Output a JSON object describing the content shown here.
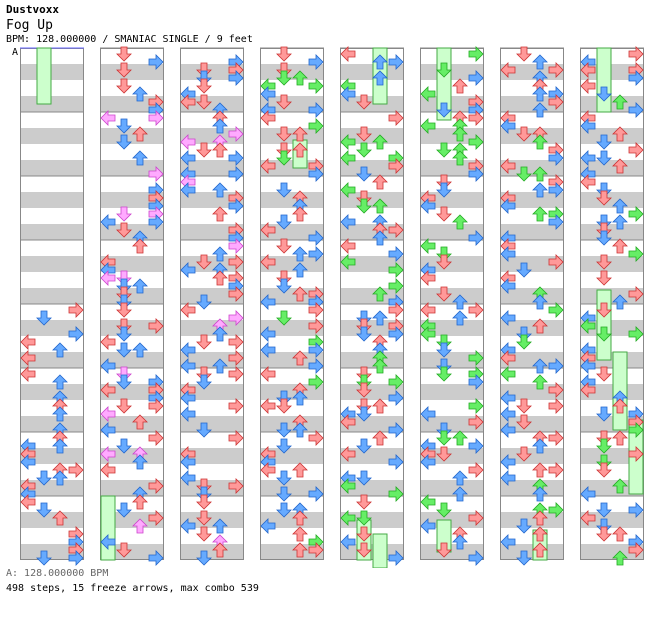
{
  "header": {
    "artist": "Dustvoxx",
    "title": "Fog Up",
    "info": "BPM: 128.000000 / SMANIAC SINGLE / 9 feet",
    "marker": "A"
  },
  "footer": {
    "bpm_line": "A: 128.000000 BPM",
    "stats_line": "498 steps, 15 freeze arrows, max combo 539"
  },
  "colors": {
    "quarter": "#ff9999",
    "eighth": "#66aaff",
    "sixteenth": "#66ee66",
    "twelfth": "#ffaaff",
    "freeze_fill": "#ccffcc",
    "freeze_edge": "#44aa44",
    "band_gray": "#cccccc"
  },
  "chart_data": {
    "type": "stepchart",
    "mode": "SMANIAC SINGLE",
    "difficulty_feet": 9,
    "bpm": 128,
    "columns": 8,
    "measures_per_column": 8,
    "lanes": [
      "left",
      "down",
      "up",
      "right"
    ],
    "total_steps": 498,
    "freeze_arrows": 15,
    "max_combo": 539
  }
}
